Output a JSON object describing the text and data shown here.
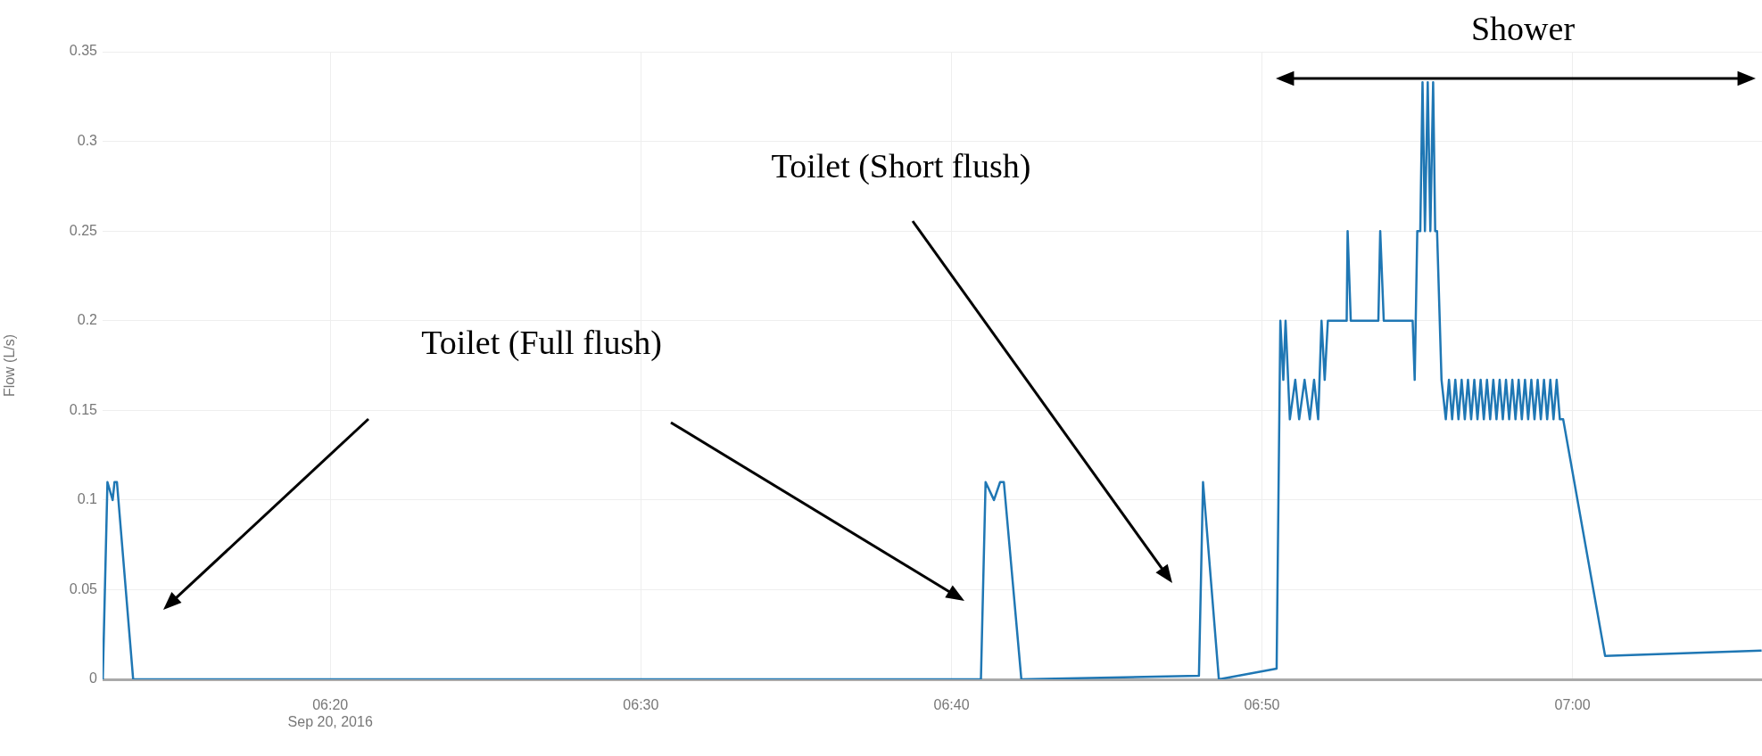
{
  "chart_data": {
    "type": "line",
    "ylabel": "Flow (L/s)",
    "annotations": [
      "Toilet (Full flush)",
      "Toilet (Short flush)",
      "Shower"
    ],
    "x": [
      6.2112,
      6.2137,
      6.2165,
      6.2175,
      6.2188,
      6.2275,
      6.6825,
      6.685,
      6.6895,
      6.6928,
      6.6948,
      6.7042,
      6.7995,
      6.8017,
      6.8102,
      6.8412,
      6.8432,
      6.8448,
      6.846,
      6.8483,
      6.8512,
      6.8533,
      6.8562,
      6.859,
      6.8613,
      6.8635,
      6.8653,
      6.867,
      6.8687,
      6.8703,
      6.8788,
      6.8793,
      6.881,
      6.8958,
      6.8968,
      6.8987,
      6.9142,
      6.9153,
      6.9167,
      6.9183,
      6.9195,
      6.9208,
      6.9223,
      6.9237,
      6.9252,
      6.9263,
      6.9273,
      6.9297,
      6.932,
      6.9337,
      6.9354,
      6.9371,
      6.9388,
      6.9405,
      6.9422,
      6.9439,
      6.9456,
      6.9473,
      6.949,
      6.9507,
      6.9524,
      6.9541,
      6.9558,
      6.9575,
      6.9592,
      6.9609,
      6.9626,
      6.9643,
      6.966,
      6.9677,
      6.9694,
      6.9711,
      6.9728,
      6.9745,
      6.9762,
      6.9779,
      6.9796,
      6.9813,
      6.983,
      6.9847,
      6.9864,
      6.9881,
      6.9898,
      6.9915,
      6.9932,
      6.995,
      7.0175,
      7.1015
    ],
    "series": [
      {
        "color": "#1f77b4",
        "values": [
          0,
          0.11,
          0.1,
          0.11,
          0.11,
          0,
          0,
          0.11,
          0.1,
          0.11,
          0.11,
          0,
          0.002,
          0.11,
          0,
          0.006,
          0.2,
          0.167,
          0.2,
          0.145,
          0.167,
          0.145,
          0.167,
          0.145,
          0.167,
          0.145,
          0.2,
          0.167,
          0.2,
          0.2,
          0.2,
          0.25,
          0.2,
          0.2,
          0.25,
          0.2,
          0.2,
          0.167,
          0.25,
          0.25,
          0.333,
          0.25,
          0.333,
          0.25,
          0.333,
          0.25,
          0.25,
          0.167,
          0.145,
          0.167,
          0.145,
          0.167,
          0.145,
          0.167,
          0.145,
          0.167,
          0.145,
          0.167,
          0.145,
          0.167,
          0.145,
          0.167,
          0.145,
          0.167,
          0.145,
          0.167,
          0.145,
          0.167,
          0.145,
          0.167,
          0.145,
          0.167,
          0.145,
          0.167,
          0.145,
          0.167,
          0.145,
          0.167,
          0.145,
          0.167,
          0.145,
          0.167,
          0.145,
          0.167,
          0.145,
          0.145,
          0.013,
          0.016
        ]
      }
    ],
    "xlim": [
      6.2111,
      7.1017
    ],
    "xticks": [
      {
        "value": 6.3333,
        "label": "06:20\nSep 20, 2016"
      },
      {
        "value": 6.5,
        "label": "06:30"
      },
      {
        "value": 6.6667,
        "label": "06:40"
      },
      {
        "value": 6.8333,
        "label": "06:50"
      },
      {
        "value": 7.0,
        "label": "07:00"
      }
    ],
    "ylim": [
      0,
      0.35
    ],
    "yticks": [
      0,
      0.05,
      0.1,
      0.15,
      0.2,
      0.25,
      0.3,
      0.35
    ],
    "grid": true,
    "legend": false,
    "marker": "none",
    "line_style": "solid"
  }
}
